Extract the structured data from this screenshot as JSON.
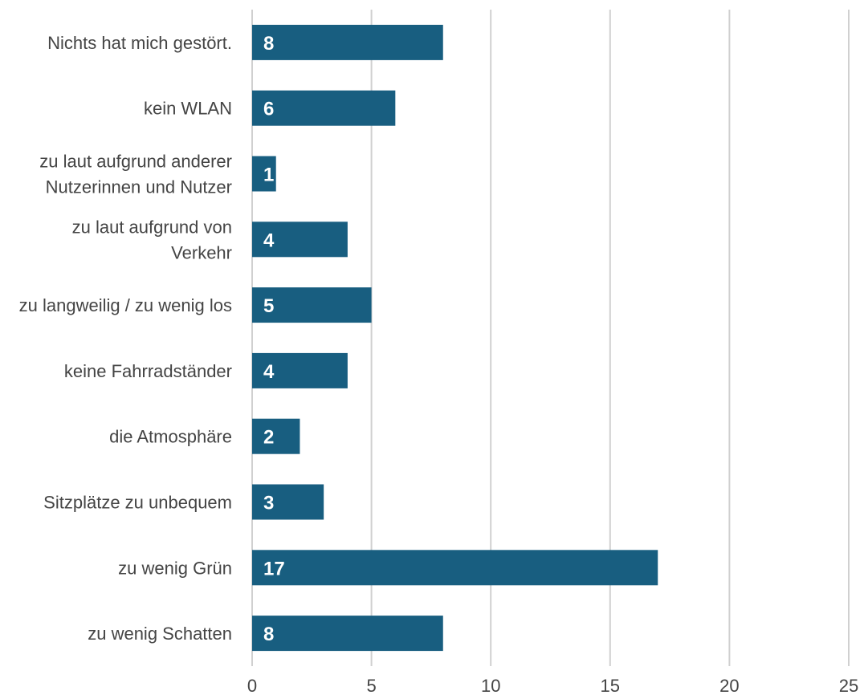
{
  "chart_data": {
    "type": "bar",
    "orientation": "horizontal",
    "categories": [
      "Nichts hat mich gestört.",
      "kein WLAN",
      "zu laut aufgrund anderer Nutzerinnen und Nutzer",
      "zu laut aufgrund von Verkehr",
      "zu langweilig / zu wenig los",
      "keine Fahrradständer",
      "die Atmosphäre",
      "Sitzplätze zu unbequem",
      "zu wenig Grün",
      "zu wenig Schatten"
    ],
    "category_lines": [
      [
        "Nichts hat mich gestört."
      ],
      [
        "kein WLAN"
      ],
      [
        "zu laut aufgrund anderer",
        "Nutzerinnen und Nutzer"
      ],
      [
        "zu laut aufgrund von",
        "Verkehr"
      ],
      [
        "zu langweilig / zu wenig los"
      ],
      [
        "keine Fahrradständer"
      ],
      [
        "die Atmosphäre"
      ],
      [
        "Sitzplätze zu unbequem"
      ],
      [
        "zu wenig Grün"
      ],
      [
        "zu wenig Schatten"
      ]
    ],
    "values": [
      8,
      6,
      1,
      4,
      5,
      4,
      2,
      3,
      17,
      8
    ],
    "xlim": [
      0,
      25
    ],
    "xticks": [
      0,
      5,
      10,
      15,
      20,
      25
    ],
    "grid": true,
    "bar_color": "#185e80",
    "data_labels": true
  }
}
